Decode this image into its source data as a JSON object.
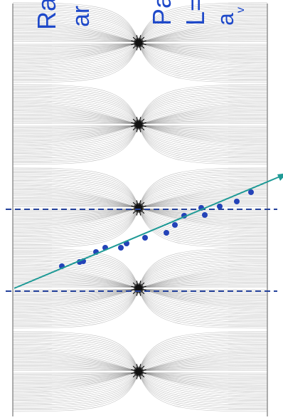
{
  "labels": [
    {
      "text": "Ra",
      "id": "label-ra"
    },
    {
      "text": "ar",
      "id": "label-ar"
    },
    {
      "text": "Pa",
      "id": "label-pa"
    },
    {
      "text": "L=",
      "id": "label-l"
    },
    {
      "text": "a",
      "id": "label-a"
    },
    {
      "text": "v",
      "id": "label-v"
    }
  ],
  "colors": {
    "field_lines": "#8a8a8a",
    "cores": "#111111",
    "dashed_lines": "#23409a",
    "points": "#2443b8",
    "trend_arrow": "#1e9a96",
    "label_text": "#1f49c9"
  },
  "icons": {
    "field_core": "star-burst-icon",
    "trend_head": "arrow-head-icon"
  }
}
